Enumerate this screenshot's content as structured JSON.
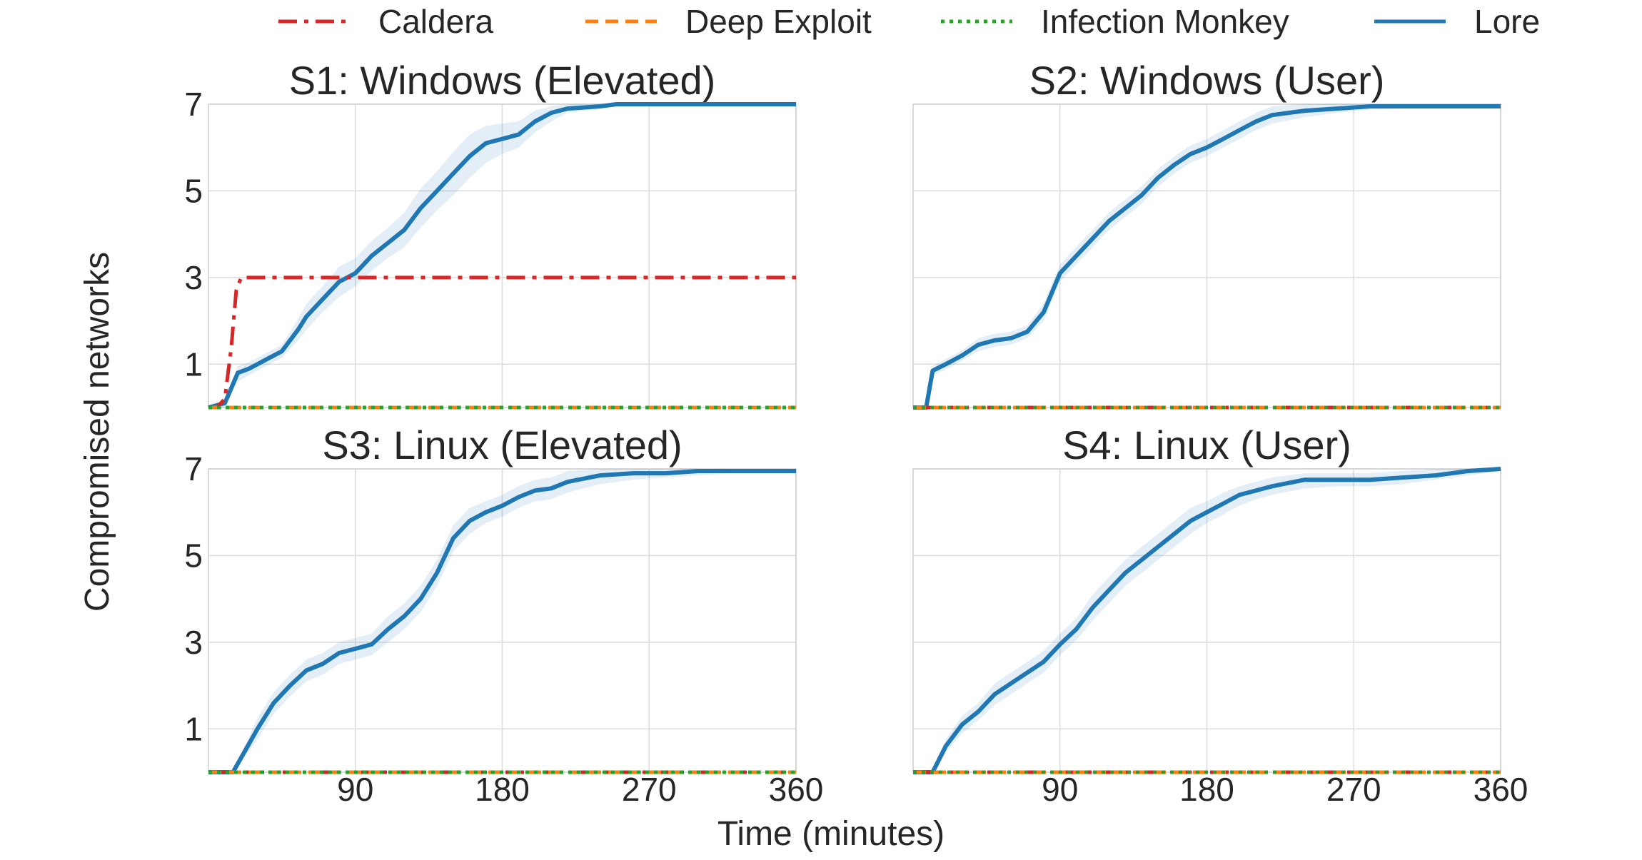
{
  "chart_data": {
    "type": "line",
    "xlabel": "Time (minutes)",
    "ylabel": "Compromised networks",
    "xlim": [
      0,
      360
    ],
    "ylim": [
      0,
      7
    ],
    "xticks": [
      90,
      180,
      270,
      360
    ],
    "yticks": [
      1,
      3,
      5,
      7
    ],
    "grid": true,
    "legend": {
      "placement": "top-center",
      "entries": [
        {
          "name": "Caldera",
          "color": "#d62728",
          "style": "dashdot"
        },
        {
          "name": "Deep Exploit",
          "color": "#ff7f0e",
          "style": "dashed"
        },
        {
          "name": "Infection Monkey",
          "color": "#2ca02c",
          "style": "dotted"
        },
        {
          "name": "Lore",
          "color": "#1f77b4",
          "style": "solid"
        }
      ]
    },
    "panels": [
      {
        "title": "S1: Windows (Elevated)",
        "series": [
          {
            "name": "Caldera",
            "x": [
              0,
              5,
              10,
              14,
              17,
              20,
              25,
              360
            ],
            "y": [
              0,
              0,
              0.2,
              1.4,
              2.7,
              3.0,
              3.0,
              3.0
            ]
          },
          {
            "name": "Deep Exploit",
            "x": [
              0,
              360
            ],
            "y": [
              0,
              0
            ]
          },
          {
            "name": "Infection Monkey",
            "x": [
              0,
              360
            ],
            "y": [
              0,
              0
            ]
          },
          {
            "name": "Lore",
            "x": [
              0,
              10,
              18,
              25,
              35,
              45,
              55,
              60,
              70,
              80,
              90,
              100,
              110,
              120,
              130,
              140,
              150,
              160,
              170,
              180,
              190,
              200,
              210,
              220,
              240,
              250,
              260,
              360
            ],
            "y": [
              0,
              0.1,
              0.8,
              0.9,
              1.1,
              1.3,
              1.8,
              2.1,
              2.5,
              2.9,
              3.1,
              3.5,
              3.8,
              4.1,
              4.6,
              5.0,
              5.4,
              5.8,
              6.1,
              6.2,
              6.3,
              6.6,
              6.8,
              6.9,
              6.95,
              7.0,
              7.0,
              7.0
            ],
            "lower": [
              0,
              0,
              0.6,
              0.75,
              0.95,
              1.15,
              1.55,
              1.8,
              2.2,
              2.55,
              2.8,
              3.15,
              3.45,
              3.7,
              4.15,
              4.55,
              4.9,
              5.3,
              5.65,
              5.85,
              6.0,
              6.35,
              6.6,
              6.8,
              6.9,
              7.0,
              7.0,
              7.0
            ],
            "upper": [
              0,
              0.2,
              0.95,
              1.05,
              1.25,
              1.45,
              2.05,
              2.4,
              2.8,
              3.25,
              3.45,
              3.85,
              4.15,
              4.5,
              5.05,
              5.45,
              5.9,
              6.3,
              6.5,
              6.55,
              6.6,
              6.85,
              6.95,
              7.0,
              7.0,
              7.0,
              7.0,
              7.0
            ]
          }
        ]
      },
      {
        "title": "S2: Windows (User)",
        "series": [
          {
            "name": "Caldera",
            "x": [
              0,
              360
            ],
            "y": [
              0,
              0
            ]
          },
          {
            "name": "Deep Exploit",
            "x": [
              0,
              360
            ],
            "y": [
              0,
              0
            ]
          },
          {
            "name": "Infection Monkey",
            "x": [
              0,
              360
            ],
            "y": [
              0,
              0
            ]
          },
          {
            "name": "Lore",
            "x": [
              0,
              8,
              12,
              20,
              30,
              40,
              50,
              60,
              70,
              80,
              90,
              100,
              110,
              120,
              130,
              140,
              150,
              160,
              170,
              180,
              190,
              200,
              210,
              220,
              240,
              260,
              280,
              300,
              360
            ],
            "y": [
              0,
              0,
              0.85,
              1.0,
              1.2,
              1.45,
              1.55,
              1.6,
              1.75,
              2.2,
              3.1,
              3.5,
              3.9,
              4.3,
              4.6,
              4.9,
              5.3,
              5.6,
              5.85,
              6.0,
              6.2,
              6.4,
              6.6,
              6.75,
              6.85,
              6.9,
              6.95,
              6.95,
              6.95
            ],
            "lower": [
              0,
              0,
              0.75,
              0.88,
              1.08,
              1.3,
              1.4,
              1.45,
              1.6,
              2.0,
              2.9,
              3.3,
              3.7,
              4.1,
              4.4,
              4.7,
              5.1,
              5.4,
              5.65,
              5.8,
              6.0,
              6.2,
              6.4,
              6.55,
              6.7,
              6.8,
              6.88,
              6.9,
              6.9
            ],
            "upper": [
              0,
              0,
              0.95,
              1.12,
              1.32,
              1.6,
              1.7,
              1.75,
              1.9,
              2.4,
              3.3,
              3.7,
              4.1,
              4.5,
              4.8,
              5.1,
              5.5,
              5.8,
              6.05,
              6.2,
              6.4,
              6.6,
              6.8,
              6.95,
              7.0,
              7.0,
              7.0,
              7.0,
              7.0
            ]
          }
        ]
      },
      {
        "title": "S3: Linux (Elevated)",
        "series": [
          {
            "name": "Caldera",
            "x": [
              0,
              360
            ],
            "y": [
              0,
              0
            ]
          },
          {
            "name": "Deep Exploit",
            "x": [
              0,
              360
            ],
            "y": [
              0,
              0
            ]
          },
          {
            "name": "Infection Monkey",
            "x": [
              0,
              360
            ],
            "y": [
              0,
              0
            ]
          },
          {
            "name": "Lore",
            "x": [
              0,
              15,
              30,
              40,
              50,
              60,
              70,
              80,
              90,
              100,
              110,
              120,
              130,
              140,
              150,
              160,
              170,
              180,
              190,
              200,
              210,
              220,
              240,
              260,
              280,
              300,
              320,
              360
            ],
            "y": [
              0,
              0,
              1.0,
              1.6,
              2.0,
              2.35,
              2.5,
              2.75,
              2.85,
              2.95,
              3.3,
              3.6,
              4.0,
              4.6,
              5.4,
              5.8,
              6.0,
              6.15,
              6.35,
              6.5,
              6.55,
              6.7,
              6.85,
              6.9,
              6.9,
              6.95,
              6.95,
              6.95
            ],
            "lower": [
              0,
              0,
              0.75,
              1.35,
              1.75,
              2.1,
              2.25,
              2.5,
              2.6,
              2.7,
              3.0,
              3.3,
              3.7,
              4.3,
              5.1,
              5.5,
              5.75,
              5.9,
              6.1,
              6.25,
              6.3,
              6.45,
              6.65,
              6.75,
              6.8,
              6.85,
              6.9,
              6.9
            ],
            "upper": [
              0,
              0,
              1.25,
              1.85,
              2.25,
              2.6,
              2.75,
              3.0,
              3.1,
              3.2,
              3.6,
              3.9,
              4.3,
              4.9,
              5.7,
              6.1,
              6.25,
              6.4,
              6.6,
              6.75,
              6.8,
              6.95,
              7.0,
              7.0,
              7.0,
              7.0,
              7.0,
              7.0
            ]
          }
        ]
      },
      {
        "title": "S4: Linux (User)",
        "series": [
          {
            "name": "Caldera",
            "x": [
              0,
              360
            ],
            "y": [
              0,
              0
            ]
          },
          {
            "name": "Deep Exploit",
            "x": [
              0,
              360
            ],
            "y": [
              0,
              0
            ]
          },
          {
            "name": "Infection Monkey",
            "x": [
              0,
              360
            ],
            "y": [
              0,
              0
            ]
          },
          {
            "name": "Lore",
            "x": [
              0,
              12,
              20,
              30,
              40,
              50,
              60,
              70,
              80,
              90,
              100,
              110,
              120,
              130,
              140,
              150,
              160,
              170,
              180,
              190,
              200,
              210,
              220,
              240,
              260,
              280,
              300,
              320,
              340,
              360
            ],
            "y": [
              0,
              0,
              0.6,
              1.1,
              1.4,
              1.8,
              2.05,
              2.3,
              2.55,
              2.95,
              3.3,
              3.8,
              4.2,
              4.6,
              4.9,
              5.2,
              5.5,
              5.8,
              6.0,
              6.2,
              6.4,
              6.5,
              6.6,
              6.75,
              6.75,
              6.75,
              6.8,
              6.85,
              6.95,
              7.0
            ],
            "lower": [
              0,
              0,
              0.45,
              0.9,
              1.2,
              1.55,
              1.8,
              2.05,
              2.3,
              2.7,
              3.05,
              3.5,
              3.9,
              4.3,
              4.6,
              4.9,
              5.2,
              5.5,
              5.75,
              5.95,
              6.15,
              6.3,
              6.4,
              6.55,
              6.6,
              6.6,
              6.65,
              6.75,
              6.85,
              6.95
            ],
            "upper": [
              0,
              0,
              0.75,
              1.3,
              1.6,
              2.05,
              2.3,
              2.55,
              2.8,
              3.2,
              3.55,
              4.1,
              4.5,
              4.9,
              5.2,
              5.5,
              5.8,
              6.1,
              6.25,
              6.45,
              6.6,
              6.7,
              6.8,
              6.9,
              6.9,
              6.9,
              6.95,
              7.0,
              7.0,
              7.0
            ]
          }
        ]
      }
    ]
  }
}
